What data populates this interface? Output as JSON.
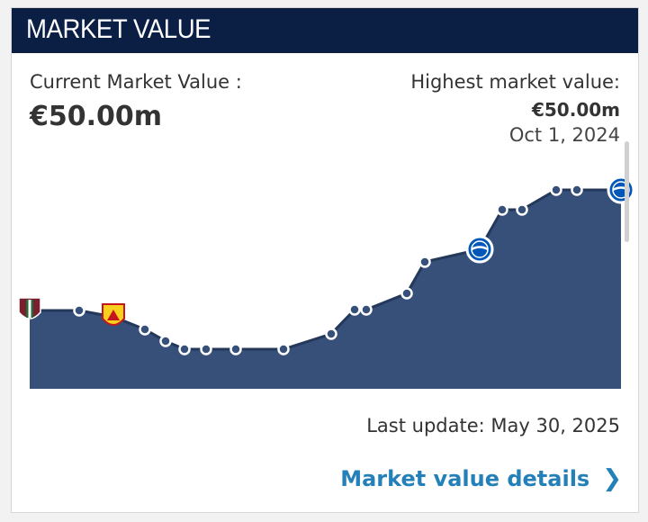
{
  "header": {
    "title": "MARKET VALUE"
  },
  "current": {
    "label": "Current Market Value :",
    "value": "€50.00m"
  },
  "highest": {
    "label": "Highest market value:",
    "value": "€50.00m",
    "date": "Oct 1, 2024"
  },
  "last_update": "Last update: May 30, 2025",
  "details_link": {
    "label": "Market value details"
  },
  "colors": {
    "header_bg": "#0b1f45",
    "area_fill": "#36507a",
    "link": "#2380b9",
    "marker_stroke": "#ffffff"
  },
  "chart_data": {
    "type": "area",
    "title": "",
    "xlabel": "",
    "ylabel": "",
    "points": [
      {
        "club": "fluminense-crest"
      },
      {
        "club": null
      },
      {
        "club": "watford-crest"
      },
      {
        "club": null
      },
      {
        "club": null
      },
      {
        "club": null
      },
      {
        "club": null
      },
      {
        "club": null
      },
      {
        "club": null
      },
      {
        "club": null
      },
      {
        "club": null
      },
      {
        "club": null
      },
      {
        "club": null
      },
      {
        "club": null
      },
      {
        "club": "brighton-crest"
      },
      {
        "club": null
      },
      {
        "club": null
      },
      {
        "club": null
      },
      {
        "club": null
      },
      {
        "club": "brighton-crest"
      }
    ],
    "max_value": "€50.00m"
  }
}
